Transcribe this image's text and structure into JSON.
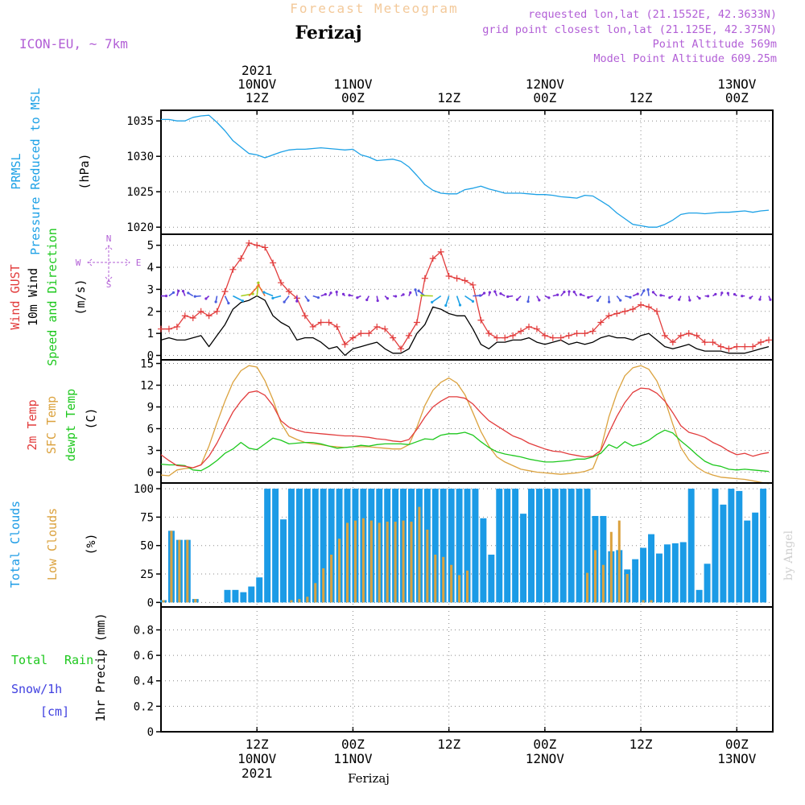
{
  "header": {
    "subtitle": "Forecast Meteogram",
    "location": "Ferizaj",
    "model": "ICON-EU, ~ 7km",
    "info_lines": [
      "requested lon,lat (21.1552E, 42.3633N)",
      "grid point closest lon,lat (21.125E, 42.375N)",
      "Point Altitude 569m",
      "Model Point Altitude 609.25m"
    ],
    "watermark": "by Angel",
    "footer_location": "Ferizaj"
  },
  "colors": {
    "pressure": "#1da1e6",
    "gust": "#e23c3c",
    "wind": "#000000",
    "temp2m": "#e23c3c",
    "sfc_temp": "#dba23e",
    "dewpt": "#1ec81e",
    "total_clouds": "#1b9be6",
    "low_clouds": "#dba23e",
    "purple": "#b25fd6"
  },
  "time_axis": {
    "top_labels": [
      {
        "lines": [
          "2021",
          "10NOV",
          "12Z"
        ],
        "t": 12
      },
      {
        "lines": [
          "11NOV",
          "00Z"
        ],
        "t": 24
      },
      {
        "lines": [
          "12Z"
        ],
        "t": 36
      },
      {
        "lines": [
          "12NOV",
          "00Z"
        ],
        "t": 48
      },
      {
        "lines": [
          "12Z"
        ],
        "t": 60
      },
      {
        "lines": [
          "13NOV",
          "00Z"
        ],
        "t": 72
      }
    ],
    "bottom_labels": [
      {
        "lines": [
          "12Z",
          "10NOV",
          "2021"
        ],
        "t": 12
      },
      {
        "lines": [
          "00Z",
          "11NOV"
        ],
        "t": 24
      },
      {
        "lines": [
          "12Z"
        ],
        "t": 36
      },
      {
        "lines": [
          "00Z",
          "12NOV"
        ],
        "t": 48
      },
      {
        "lines": [
          "12Z"
        ],
        "t": 60
      },
      {
        "lines": [
          "00Z",
          "13NOV"
        ],
        "t": 72
      }
    ]
  },
  "panels": {
    "pressure": {
      "labels": [
        "PRMSL",
        "Pressure Reduced to MSL",
        "(hPa)"
      ],
      "ticks": [
        1020,
        1025,
        1030,
        1035
      ]
    },
    "wind": {
      "labels": [
        "Wind GUST",
        "10m Wind",
        "Speed and Direction",
        "(m/s)"
      ],
      "ticks": [
        0,
        1,
        2,
        3,
        4,
        5
      ],
      "compass": {
        "n": "N",
        "s": "S",
        "w": "W",
        "e": "E"
      }
    },
    "temperature": {
      "labels": [
        "2m Temp",
        "SFC Temp",
        "dewpt Temp",
        "(C)"
      ],
      "ticks": [
        0,
        3,
        6,
        9,
        12,
        15
      ]
    },
    "clouds": {
      "labels": [
        "Total Clouds",
        "Low Clouds",
        "(%)"
      ],
      "ticks": [
        0,
        25,
        50,
        75,
        100
      ]
    },
    "precip": {
      "labels": [
        "Total",
        "Rain",
        "Snow/1h",
        "[cm]",
        "1hr Precip (mm)"
      ],
      "ticks": [
        "0",
        "0.2",
        "0.4",
        "0.6",
        "0.8"
      ]
    }
  },
  "chart_data": [
    {
      "type": "line",
      "name": "PRMSL",
      "unit": "hPa",
      "ylim": [
        1019,
        1036.5
      ],
      "x_hours": [
        0,
        1,
        2,
        3,
        4,
        5,
        6,
        7,
        8,
        9,
        10,
        11,
        12,
        13,
        14,
        15,
        16,
        17,
        18,
        19,
        20,
        21,
        22,
        23,
        24,
        25,
        26,
        27,
        28,
        29,
        30,
        31,
        32,
        33,
        34,
        35,
        36,
        37,
        38,
        39,
        40,
        41,
        42,
        43,
        44,
        45,
        46,
        47,
        48,
        49,
        50,
        51,
        52,
        53,
        54,
        55,
        56,
        57,
        58,
        59,
        60,
        61,
        62,
        63,
        64,
        65,
        66,
        67,
        68,
        69,
        70,
        71,
        72,
        73,
        74,
        75,
        76
      ],
      "values": [
        1035.2,
        1035.2,
        1035.0,
        1035.0,
        1035.5,
        1035.7,
        1035.8,
        1034.8,
        1033.6,
        1032.2,
        1031.3,
        1030.4,
        1030.2,
        1029.8,
        1030.2,
        1030.6,
        1030.9,
        1031.0,
        1031.0,
        1031.1,
        1031.2,
        1031.1,
        1031.0,
        1030.9,
        1031.0,
        1030.2,
        1029.9,
        1029.4,
        1029.5,
        1029.6,
        1029.3,
        1028.5,
        1027.3,
        1026.0,
        1025.2,
        1024.8,
        1024.7,
        1024.7,
        1025.3,
        1025.5,
        1025.8,
        1025.4,
        1025.1,
        1024.8,
        1024.8,
        1024.8,
        1024.7,
        1024.6,
        1024.6,
        1024.5,
        1024.3,
        1024.2,
        1024.1,
        1024.5,
        1024.4,
        1023.7,
        1023.0,
        1022.0,
        1021.2,
        1020.4,
        1020.2,
        1020.0,
        1020.0,
        1020.4,
        1021.0,
        1021.8,
        1022.0,
        1022.0,
        1021.9,
        1022.0,
        1022.1,
        1022.1,
        1022.2,
        1022.3,
        1022.1,
        1022.3,
        1022.4
      ]
    },
    {
      "type": "line",
      "name": "Wind GUST / 10m Wind",
      "unit": "m/s",
      "ylim": [
        -0.2,
        5.5
      ],
      "x_hours": [
        0,
        1,
        2,
        3,
        4,
        5,
        6,
        7,
        8,
        9,
        10,
        11,
        12,
        13,
        14,
        15,
        16,
        17,
        18,
        19,
        20,
        21,
        22,
        23,
        24,
        25,
        26,
        27,
        28,
        29,
        30,
        31,
        32,
        33,
        34,
        35,
        36,
        37,
        38,
        39,
        40,
        41,
        42,
        43,
        44,
        45,
        46,
        47,
        48,
        49,
        50,
        51,
        52,
        53,
        54,
        55,
        56,
        57,
        58,
        59,
        60,
        61,
        62,
        63,
        64,
        65,
        66,
        67,
        68,
        69,
        70,
        71,
        72,
        73,
        74,
        75,
        76
      ],
      "series": [
        {
          "name": "Wind GUST",
          "values": [
            1.2,
            1.2,
            1.3,
            1.8,
            1.7,
            2.0,
            1.8,
            2.0,
            2.9,
            3.9,
            4.4,
            5.1,
            5.0,
            4.9,
            4.2,
            3.3,
            2.9,
            2.6,
            1.8,
            1.3,
            1.5,
            1.5,
            1.3,
            0.5,
            0.8,
            1.0,
            1.0,
            1.3,
            1.2,
            0.8,
            0.3,
            0.9,
            1.5,
            3.5,
            4.4,
            4.7,
            3.6,
            3.5,
            3.4,
            3.2,
            1.6,
            1.0,
            0.8,
            0.8,
            0.9,
            1.1,
            1.3,
            1.2,
            0.9,
            0.8,
            0.8,
            0.9,
            1.0,
            1.0,
            1.1,
            1.5,
            1.8,
            1.9,
            2.0,
            2.1,
            2.3,
            2.2,
            2.0,
            0.9,
            0.6,
            0.9,
            1.0,
            0.9,
            0.6,
            0.6,
            0.4,
            0.3,
            0.4,
            0.4,
            0.4,
            0.6,
            0.7
          ]
        },
        {
          "name": "10m Wind",
          "values": [
            0.7,
            0.8,
            0.7,
            0.7,
            0.8,
            0.9,
            0.4,
            0.9,
            1.4,
            2.1,
            2.4,
            2.5,
            2.7,
            2.5,
            1.8,
            1.5,
            1.3,
            0.7,
            0.8,
            0.8,
            0.6,
            0.3,
            0.4,
            0.0,
            0.3,
            0.4,
            0.5,
            0.6,
            0.3,
            0.1,
            0.1,
            0.3,
            1.0,
            1.4,
            2.2,
            2.1,
            1.9,
            1.8,
            1.8,
            1.2,
            0.5,
            0.3,
            0.6,
            0.6,
            0.7,
            0.7,
            0.8,
            0.6,
            0.5,
            0.6,
            0.7,
            0.5,
            0.6,
            0.5,
            0.6,
            0.8,
            0.9,
            0.8,
            0.8,
            0.7,
            0.9,
            1.0,
            0.7,
            0.4,
            0.3,
            0.4,
            0.5,
            0.3,
            0.2,
            0.2,
            0.2,
            0.1,
            0.1,
            0.1,
            0.2,
            0.3,
            0.4
          ]
        }
      ],
      "direction_arrows": "colored arrows at ~2.7 m/s along the panel"
    },
    {
      "type": "line",
      "name": "Temperatures",
      "unit": "C",
      "ylim": [
        -1.5,
        15.5
      ],
      "x_hours": [
        0,
        1,
        2,
        3,
        4,
        5,
        6,
        7,
        8,
        9,
        10,
        11,
        12,
        13,
        14,
        15,
        16,
        17,
        18,
        19,
        20,
        21,
        22,
        23,
        24,
        25,
        26,
        27,
        28,
        29,
        30,
        31,
        32,
        33,
        34,
        35,
        36,
        37,
        38,
        39,
        40,
        41,
        42,
        43,
        44,
        45,
        46,
        47,
        48,
        49,
        50,
        51,
        52,
        53,
        54,
        55,
        56,
        57,
        58,
        59,
        60,
        61,
        62,
        63,
        64,
        65,
        66,
        67,
        68,
        69,
        70,
        71,
        72,
        73,
        74,
        75,
        76
      ],
      "series": [
        {
          "name": "2m Temp",
          "values": [
            2.4,
            1.6,
            0.9,
            0.8,
            0.6,
            1.0,
            2.2,
            4.0,
            6.2,
            8.3,
            9.8,
            11.0,
            11.2,
            10.6,
            9.2,
            7.1,
            6.2,
            5.8,
            5.5,
            5.4,
            5.3,
            5.2,
            5.1,
            5.0,
            5.0,
            4.9,
            4.8,
            4.6,
            4.5,
            4.3,
            4.2,
            4.5,
            5.9,
            7.6,
            9.0,
            9.8,
            10.4,
            10.4,
            10.2,
            9.4,
            8.2,
            7.1,
            6.4,
            5.7,
            5.0,
            4.6,
            4.0,
            3.6,
            3.2,
            2.9,
            2.8,
            2.5,
            2.3,
            2.1,
            2.2,
            3.0,
            5.4,
            7.7,
            9.6,
            11.0,
            11.6,
            11.5,
            10.9,
            9.8,
            8.2,
            6.4,
            5.5,
            5.2,
            4.8,
            4.1,
            3.6,
            2.9,
            2.4,
            2.6,
            2.2,
            2.5,
            2.7
          ]
        },
        {
          "name": "SFC Temp",
          "values": [
            -0.4,
            -0.5,
            0.3,
            0.5,
            0.6,
            1.0,
            3.6,
            6.8,
            9.8,
            12.4,
            14.0,
            14.7,
            14.5,
            12.6,
            10.0,
            6.8,
            5.0,
            4.5,
            4.1,
            3.9,
            3.8,
            3.6,
            3.5,
            3.4,
            3.5,
            3.5,
            3.5,
            3.4,
            3.3,
            3.2,
            3.2,
            3.8,
            6.2,
            9.2,
            11.3,
            12.4,
            13.0,
            12.3,
            10.7,
            8.2,
            5.6,
            3.6,
            2.1,
            1.4,
            0.9,
            0.4,
            0.2,
            0.0,
            -0.1,
            -0.2,
            -0.3,
            -0.2,
            -0.1,
            0.1,
            0.5,
            3.2,
            7.6,
            10.9,
            13.3,
            14.4,
            14.7,
            14.2,
            12.6,
            10.0,
            6.6,
            3.4,
            1.7,
            0.7,
            0.0,
            -0.4,
            -0.7,
            -0.8,
            -0.9,
            -1.0,
            -1.2,
            -1.4,
            -1.6
          ]
        },
        {
          "name": "dewpt Temp",
          "values": [
            1.1,
            1.0,
            1.0,
            0.9,
            0.3,
            0.2,
            0.8,
            1.6,
            2.6,
            3.2,
            4.1,
            3.3,
            3.1,
            3.9,
            4.7,
            4.4,
            3.9,
            4.0,
            4.1,
            4.1,
            3.9,
            3.6,
            3.3,
            3.4,
            3.5,
            3.7,
            3.6,
            3.8,
            3.9,
            3.9,
            3.9,
            3.8,
            4.2,
            4.6,
            4.5,
            5.1,
            5.3,
            5.3,
            5.5,
            5.1,
            4.2,
            3.4,
            2.8,
            2.5,
            2.3,
            2.1,
            1.8,
            1.6,
            1.4,
            1.4,
            1.5,
            1.6,
            1.8,
            1.8,
            2.1,
            2.6,
            3.8,
            3.3,
            4.2,
            3.6,
            3.9,
            4.4,
            5.2,
            5.8,
            5.4,
            4.3,
            3.4,
            2.4,
            1.5,
            1.0,
            0.8,
            0.4,
            0.3,
            0.4,
            0.3,
            0.2,
            0.1
          ]
        }
      ]
    },
    {
      "type": "bar",
      "name": "Clouds",
      "unit": "%",
      "ylim": [
        -4,
        105
      ],
      "x_hours": [
        0,
        1,
        2,
        3,
        4,
        5,
        6,
        7,
        8,
        9,
        10,
        11,
        12,
        13,
        14,
        15,
        16,
        17,
        18,
        19,
        20,
        21,
        22,
        23,
        24,
        25,
        26,
        27,
        28,
        29,
        30,
        31,
        32,
        33,
        34,
        35,
        36,
        37,
        38,
        39,
        40,
        41,
        42,
        43,
        44,
        45,
        46,
        47,
        48,
        49,
        50,
        51,
        52,
        53,
        54,
        55,
        56,
        57,
        58,
        59,
        60,
        61,
        62,
        63,
        64,
        65,
        66,
        67,
        68,
        69,
        70,
        71,
        72,
        73,
        74,
        75,
        76
      ],
      "series": [
        {
          "name": "Total Clouds",
          "values": [
            2,
            63,
            55,
            55,
            3,
            0,
            0,
            0,
            11,
            11,
            9,
            14,
            22,
            100,
            100,
            73,
            100,
            100,
            100,
            100,
            100,
            100,
            100,
            100,
            100,
            100,
            100,
            100,
            100,
            100,
            100,
            100,
            100,
            100,
            100,
            100,
            100,
            100,
            100,
            100,
            74,
            42,
            100,
            100,
            100,
            78,
            100,
            100,
            100,
            100,
            100,
            100,
            100,
            100,
            76,
            76,
            45,
            46,
            29,
            38,
            48,
            60,
            43,
            51,
            52,
            53,
            100,
            11,
            34,
            100,
            86,
            100,
            98,
            72,
            79,
            100,
            0
          ]
        },
        {
          "name": "Low Clouds",
          "values": [
            2,
            63,
            55,
            55,
            3,
            0,
            0,
            0,
            0,
            0,
            0,
            0,
            0,
            0,
            0,
            0,
            2,
            3,
            5,
            17,
            30,
            42,
            56,
            70,
            72,
            74,
            72,
            70,
            71,
            71,
            72,
            71,
            84,
            64,
            42,
            40,
            33,
            24,
            28,
            0,
            0,
            0,
            0,
            0,
            0,
            0,
            0,
            0,
            0,
            0,
            0,
            0,
            0,
            26,
            46,
            33,
            62,
            72,
            25,
            0,
            2,
            2,
            0,
            0,
            0,
            0,
            0,
            0,
            0,
            0,
            0,
            0,
            0,
            0,
            0,
            0,
            0
          ]
        }
      ]
    },
    {
      "type": "line",
      "name": "1hr Precip",
      "unit": "mm",
      "ylim": [
        0,
        0.98
      ],
      "x_hours": [
        0,
        76
      ],
      "series": [
        {
          "name": "Total",
          "values": [
            0,
            0
          ]
        },
        {
          "name": "Rain",
          "values": [
            0,
            0
          ]
        },
        {
          "name": "Snow/1h",
          "values": [
            0,
            0
          ]
        }
      ]
    }
  ]
}
